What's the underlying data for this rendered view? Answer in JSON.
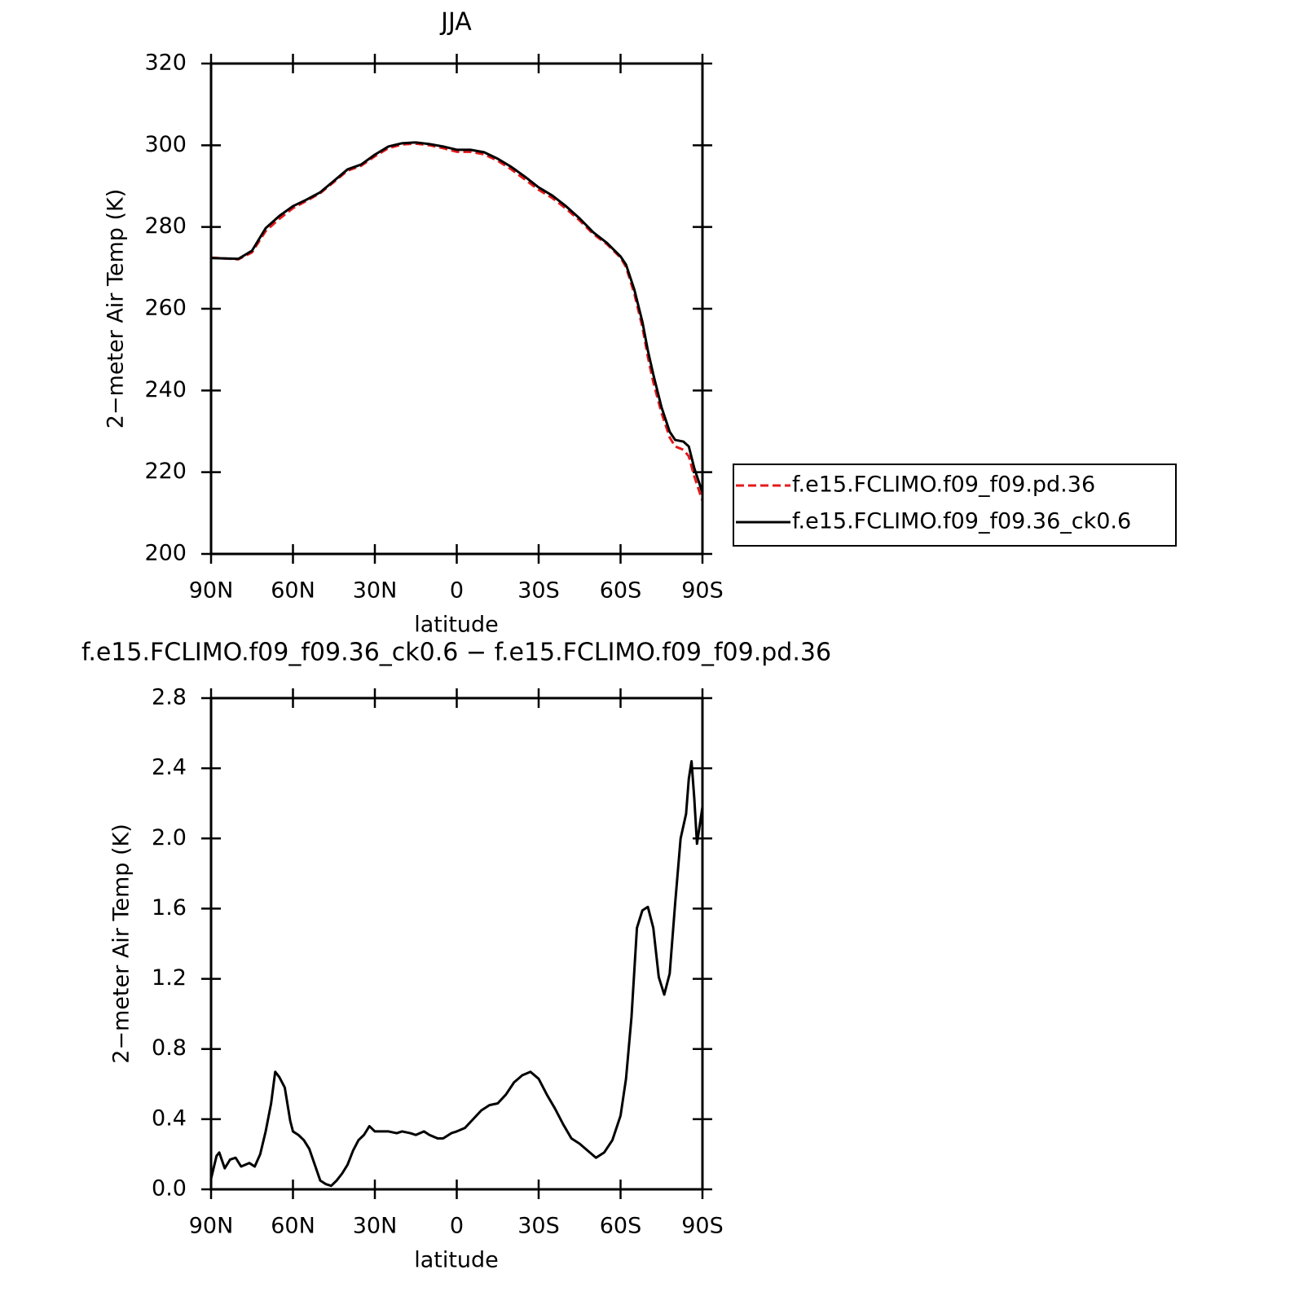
{
  "chart_data": [
    {
      "type": "line",
      "title": "JJA",
      "xlabel": "latitude",
      "ylabel": "2−meter Air Temp (K)",
      "x": [
        90,
        85,
        80,
        75,
        70,
        65,
        60,
        55,
        50,
        45,
        40,
        35,
        30,
        25,
        20,
        15,
        10,
        5,
        0,
        -5,
        -10,
        -15,
        -20,
        -25,
        -30,
        -35,
        -40,
        -45,
        -50,
        -55,
        -60,
        -62,
        -65,
        -68,
        -70,
        -72,
        -75,
        -78,
        -80,
        -83,
        -85,
        -87,
        -90
      ],
      "series": [
        {
          "name": "f.e15.FCLIMO.f09_f09.pd.36",
          "color": "#e41a1c",
          "line_style": "dashed",
          "values": [
            272.5,
            272.3,
            272.1,
            273.8,
            279.0,
            282.0,
            284.6,
            286.4,
            288.3,
            291.0,
            293.8,
            295.0,
            297.3,
            299.3,
            300.2,
            300.4,
            300.0,
            299.3,
            298.4,
            298.4,
            297.8,
            296.2,
            294.1,
            291.6,
            289.1,
            287.1,
            284.5,
            281.6,
            278.3,
            275.8,
            272.5,
            270.2,
            263.8,
            255.5,
            248.2,
            242.0,
            234.5,
            228.5,
            226.3,
            225.5,
            223.9,
            219,
            213
          ]
        },
        {
          "name": "f.e15.FCLIMO.f09_f09.36_ck0.6",
          "color": "#000000",
          "line_style": "solid",
          "values": [
            272.4,
            272.3,
            272.2,
            274.2,
            279.7,
            282.7,
            285.1,
            286.7,
            288.5,
            291.3,
            294.1,
            295.3,
            297.7,
            299.7,
            300.5,
            300.7,
            300.3,
            299.7,
            298.9,
            298.9,
            298.3,
            296.7,
            294.7,
            292.3,
            289.7,
            287.7,
            285.1,
            282.1,
            278.7,
            276.1,
            272.8,
            270.8,
            264.8,
            256.8,
            249.8,
            243.9,
            235.9,
            229.9,
            227.9,
            227.5,
            226.3,
            221,
            215
          ]
        }
      ],
      "xlim": [
        90,
        -90
      ],
      "xticks": [
        {
          "value": 90,
          "label": "90N"
        },
        {
          "value": 60,
          "label": "60N"
        },
        {
          "value": 30,
          "label": "30N"
        },
        0,
        {
          "value": -30,
          "label": "30S"
        },
        {
          "value": -60,
          "label": "60S"
        },
        {
          "value": -90,
          "label": "90S"
        }
      ],
      "ylim": [
        200,
        320
      ],
      "yticks": [
        200,
        220,
        240,
        260,
        280,
        300,
        320
      ],
      "legend": "outside right"
    },
    {
      "type": "line",
      "title": "f.e15.FCLIMO.f09_f09.36_ck0.6 − f.e15.FCLIMO.f09_f09.pd.36",
      "xlabel": "latitude",
      "ylabel": "2−meter Air Temp (K)",
      "x": [
        90,
        88,
        87,
        85,
        83,
        81,
        79,
        76,
        74,
        72,
        70,
        68,
        66.5,
        65,
        63,
        61,
        60,
        58,
        56,
        54,
        52,
        50,
        48,
        46,
        44,
        42,
        40,
        38,
        36,
        34,
        32,
        30,
        28,
        25,
        22,
        20,
        17,
        15,
        12,
        10,
        7,
        5,
        2,
        0,
        -3,
        -6,
        -9,
        -12,
        -15,
        -18,
        -21,
        -24,
        -27,
        -30,
        -33,
        -36,
        -39,
        -42,
        -45,
        -48,
        -51,
        -54,
        -57,
        -60,
        -62,
        -64,
        -66,
        -68,
        -70,
        -72,
        -74,
        -76,
        -78,
        -80,
        -82,
        -84,
        -85,
        -86,
        -87,
        -88,
        -90
      ],
      "series": [
        {
          "color": "#000000",
          "line_style": "solid",
          "values": [
            0.06,
            0.19,
            0.21,
            0.12,
            0.17,
            0.18,
            0.13,
            0.15,
            0.13,
            0.2,
            0.33,
            0.49,
            0.67,
            0.64,
            0.58,
            0.39,
            0.33,
            0.31,
            0.28,
            0.23,
            0.14,
            0.05,
            0.03,
            0.02,
            0.05,
            0.09,
            0.14,
            0.22,
            0.28,
            0.31,
            0.36,
            0.33,
            0.33,
            0.33,
            0.32,
            0.33,
            0.32,
            0.31,
            0.33,
            0.31,
            0.29,
            0.29,
            0.32,
            0.33,
            0.35,
            0.4,
            0.45,
            0.48,
            0.49,
            0.54,
            0.61,
            0.65,
            0.67,
            0.63,
            0.54,
            0.46,
            0.37,
            0.29,
            0.26,
            0.22,
            0.18,
            0.21,
            0.28,
            0.42,
            0.63,
            0.98,
            1.49,
            1.59,
            1.61,
            1.49,
            1.21,
            1.11,
            1.23,
            1.63,
            2.0,
            2.14,
            2.34,
            2.44,
            2.23,
            1.97,
            2.18
          ]
        }
      ],
      "xlim": [
        90,
        -90
      ],
      "xticks": [
        {
          "value": 90,
          "label": "90N"
        },
        {
          "value": 60,
          "label": "60N"
        },
        {
          "value": 30,
          "label": "30N"
        },
        0,
        {
          "value": -30,
          "label": "30S"
        },
        {
          "value": -60,
          "label": "60S"
        },
        {
          "value": -90,
          "label": "90S"
        }
      ],
      "ylim": [
        0,
        2.8
      ],
      "yticks": [
        {
          "value": 0,
          "label": "0.0"
        },
        0.4,
        0.8,
        1.2,
        1.6,
        {
          "value": 2,
          "label": "2.0"
        },
        2.4,
        2.8
      ]
    }
  ]
}
